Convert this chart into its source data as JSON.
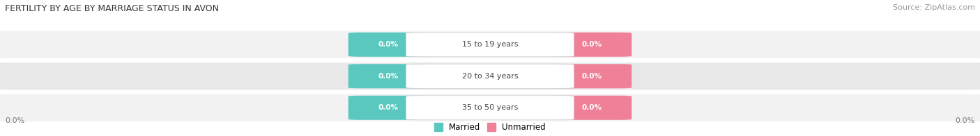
{
  "title": "FERTILITY BY AGE BY MARRIAGE STATUS IN AVON",
  "source": "Source: ZipAtlas.com",
  "categories": [
    "15 to 19 years",
    "20 to 34 years",
    "35 to 50 years"
  ],
  "married_values": [
    0.0,
    0.0,
    0.0
  ],
  "unmarried_values": [
    0.0,
    0.0,
    0.0
  ],
  "married_color": "#5BC8BF",
  "unmarried_color": "#F08098",
  "row_bg_light": "#F2F2F2",
  "row_bg_dark": "#E8E8E8",
  "full_bar_color": "#E0E0E0",
  "title_fontsize": 9,
  "source_fontsize": 8,
  "axis_label": "0.0%",
  "figsize": [
    14.06,
    1.96
  ],
  "dpi": 100
}
